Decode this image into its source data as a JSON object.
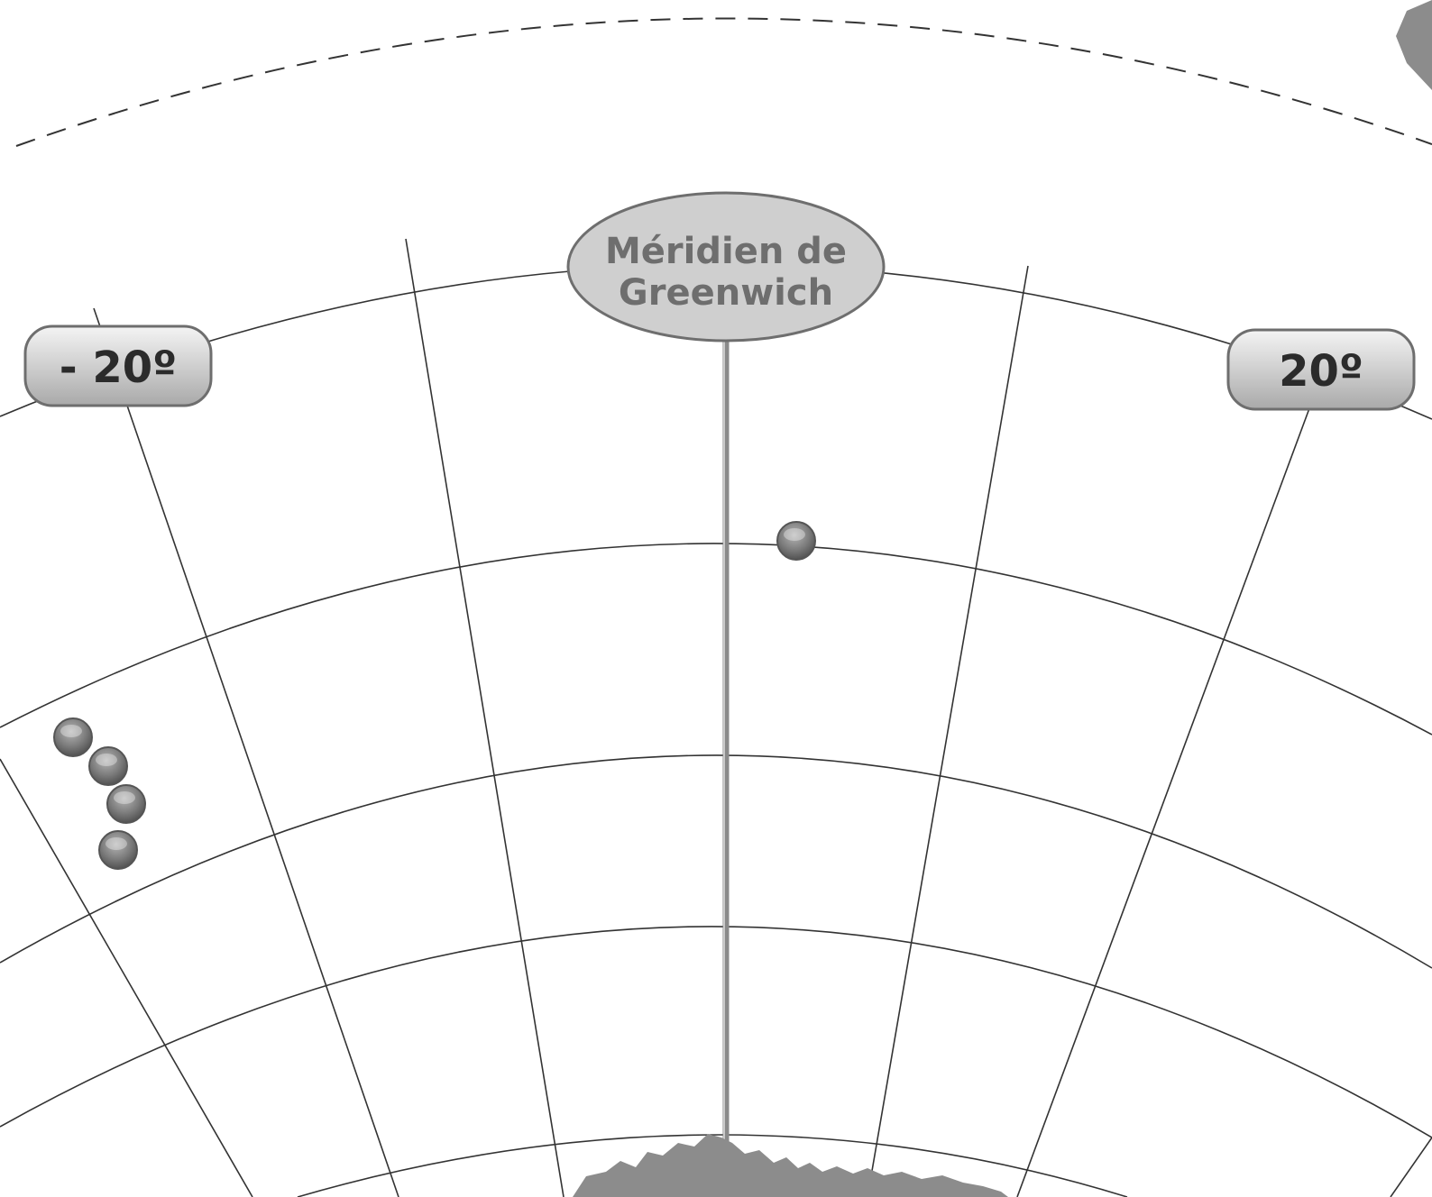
{
  "map": {
    "projection": "polar-azimuthal",
    "hemisphere": "south",
    "colors": {
      "background": "#ffffff",
      "grid": "#333333",
      "meridian_line": "#8a8a8a",
      "label_fill": "#cfcfcf",
      "label_text": "#2b2b2b",
      "oval_text": "#6e6e6e",
      "marker": "#7d7d7d",
      "land": "#8c8c8c"
    },
    "labels": {
      "meridian": [
        "Méridien de",
        "Greenwich"
      ],
      "west_20": "- 20º",
      "east_20": "20º"
    },
    "meridian_degrees": [
      -30,
      -20,
      -10,
      0,
      10,
      20,
      30
    ],
    "markers": [
      {
        "name": "marker-1",
        "lat": -49.3,
        "lon": 4.0
      },
      {
        "name": "marker-2",
        "lat": -54.5,
        "lon": -26.5
      },
      {
        "name": "marker-3",
        "lat": -55.8,
        "lon": -26.7
      },
      {
        "name": "marker-4",
        "lat": -57.1,
        "lon": -26.6
      },
      {
        "name": "marker-5",
        "lat": -58.5,
        "lon": -26.4
      }
    ]
  }
}
